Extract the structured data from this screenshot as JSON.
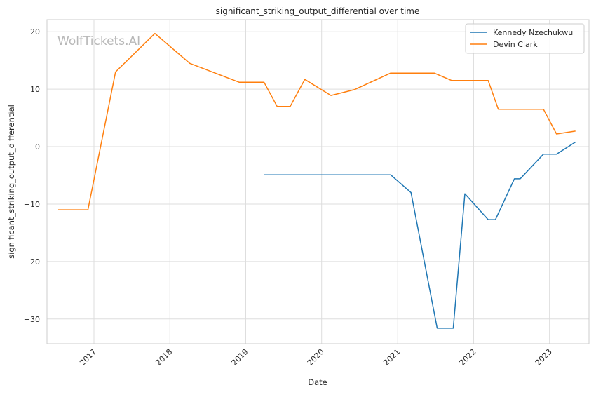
{
  "watermark": "WolfTickets.AI",
  "chart_data": {
    "type": "line",
    "title": "significant_striking_output_differential over time",
    "xlabel": "Date",
    "ylabel": "significant_striking_output_differential",
    "x_ticks": [
      "2017",
      "2018",
      "2019",
      "2020",
      "2021",
      "2022",
      "2023"
    ],
    "y_ticks": [
      20,
      10,
      0,
      -10,
      -20,
      -30
    ],
    "xlim": [
      "2016-05-20",
      "2023-07-10"
    ],
    "ylim": [
      -34.3,
      22.1
    ],
    "grid": true,
    "legend_position": "upper-right",
    "series": [
      {
        "name": "Kennedy Nzechukwu",
        "color": "#1f77b4",
        "points": [
          [
            "2019-03-30",
            -4.9
          ],
          [
            "2020-11-28",
            -4.9
          ],
          [
            "2021-03-06",
            -8.0
          ],
          [
            "2021-07-10",
            -31.6
          ],
          [
            "2021-09-25",
            -31.6
          ],
          [
            "2021-11-20",
            -8.2
          ],
          [
            "2022-03-12",
            -12.7
          ],
          [
            "2022-04-16",
            -12.7
          ],
          [
            "2022-07-16",
            -5.6
          ],
          [
            "2022-08-13",
            -5.6
          ],
          [
            "2022-12-03",
            -1.3
          ],
          [
            "2023-02-04",
            -1.3
          ],
          [
            "2023-05-06",
            0.8
          ]
        ]
      },
      {
        "name": "Devin Clark",
        "color": "#ff7f0e",
        "points": [
          [
            "2016-07-13",
            -11.0
          ],
          [
            "2016-12-03",
            -11.0
          ],
          [
            "2017-04-15",
            13.0
          ],
          [
            "2017-10-21",
            19.7
          ],
          [
            "2018-04-07",
            14.5
          ],
          [
            "2018-12-01",
            11.2
          ],
          [
            "2019-03-30",
            11.2
          ],
          [
            "2019-06-01",
            7.0
          ],
          [
            "2019-08-03",
            7.0
          ],
          [
            "2019-10-12",
            11.7
          ],
          [
            "2020-02-15",
            8.9
          ],
          [
            "2020-06-06",
            9.9
          ],
          [
            "2020-11-28",
            12.8
          ],
          [
            "2021-06-26",
            12.8
          ],
          [
            "2021-09-18",
            11.5
          ],
          [
            "2022-03-12",
            11.5
          ],
          [
            "2022-04-30",
            6.5
          ],
          [
            "2022-08-13",
            6.5
          ],
          [
            "2022-12-03",
            6.5
          ],
          [
            "2023-02-04",
            2.2
          ],
          [
            "2023-05-06",
            2.7
          ]
        ]
      }
    ]
  }
}
